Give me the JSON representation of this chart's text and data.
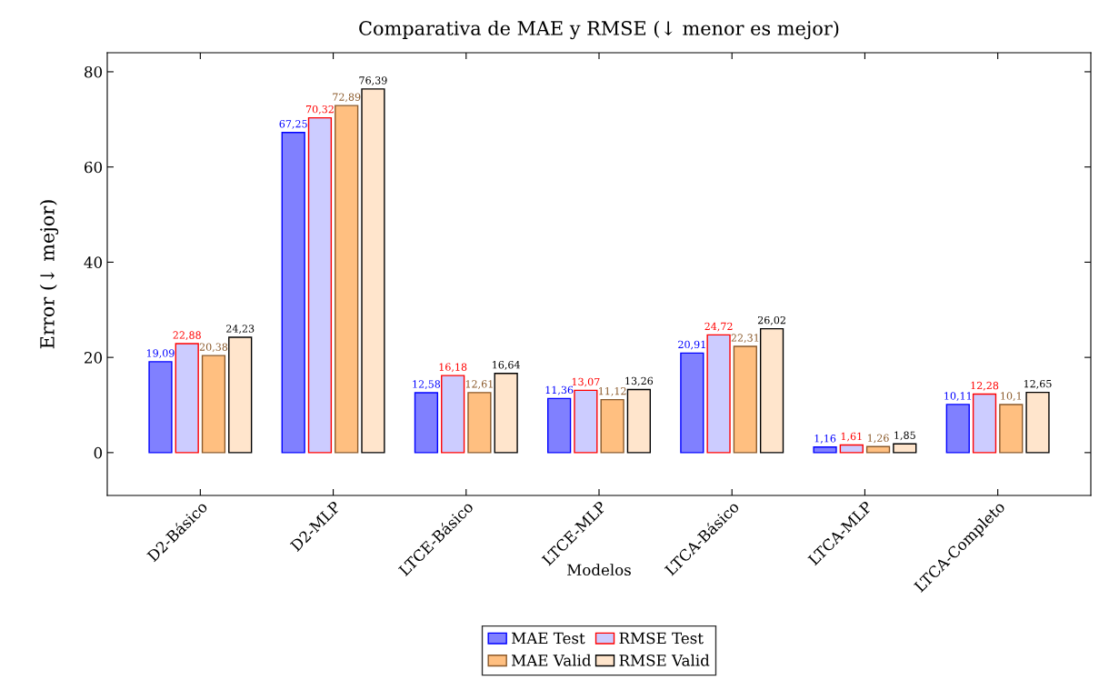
{
  "chart_data": {
    "type": "bar",
    "title": "Comparativa de MAE y RMSE (↓ menor es mejor)",
    "xlabel": "Modelos",
    "ylabel": "Error (↓ mejor)",
    "categories": [
      "D2-Básico",
      "D2-MLP",
      "LTCE-Básico",
      "LTCE-MLP",
      "LTCA-Básico",
      "LTCA-MLP",
      "LTCA-Completo"
    ],
    "series": [
      {
        "name": "MAE Test",
        "color": "#8080ff",
        "values": [
          19.09,
          67.25,
          12.58,
          11.36,
          20.91,
          1.16,
          10.11
        ],
        "value_labels": [
          "19,09",
          "67,25",
          "12,58",
          "11,36",
          "20,91",
          "1,16",
          "10,11"
        ]
      },
      {
        "name": "RMSE Test",
        "color": "#ccccff",
        "values": [
          22.88,
          70.32,
          16.18,
          13.07,
          24.72,
          1.61,
          12.28
        ],
        "value_labels": [
          "22,88",
          "70,32",
          "16,18",
          "13,07",
          "24,72",
          "1,61",
          "12,28"
        ]
      },
      {
        "name": "MAE Valid",
        "color": "#ffbf80",
        "values": [
          20.38,
          72.89,
          12.61,
          11.12,
          22.31,
          1.26,
          10.1
        ],
        "value_labels": [
          "20,38",
          "72,89",
          "12,61",
          "11,12",
          "22,31",
          "1,26",
          "10,1"
        ]
      },
      {
        "name": "RMSE Valid",
        "color": "#ffe5cc",
        "values": [
          24.23,
          76.39,
          16.64,
          13.26,
          26.02,
          1.85,
          12.65
        ],
        "value_labels": [
          "24,23",
          "76,39",
          "16,64",
          "13,26",
          "26,02",
          "1,85",
          "12,65"
        ]
      }
    ],
    "ylim": [
      -9,
      84
    ],
    "yticks": [
      0,
      20,
      40,
      60,
      80
    ],
    "grid": false,
    "legend": "bottom"
  }
}
